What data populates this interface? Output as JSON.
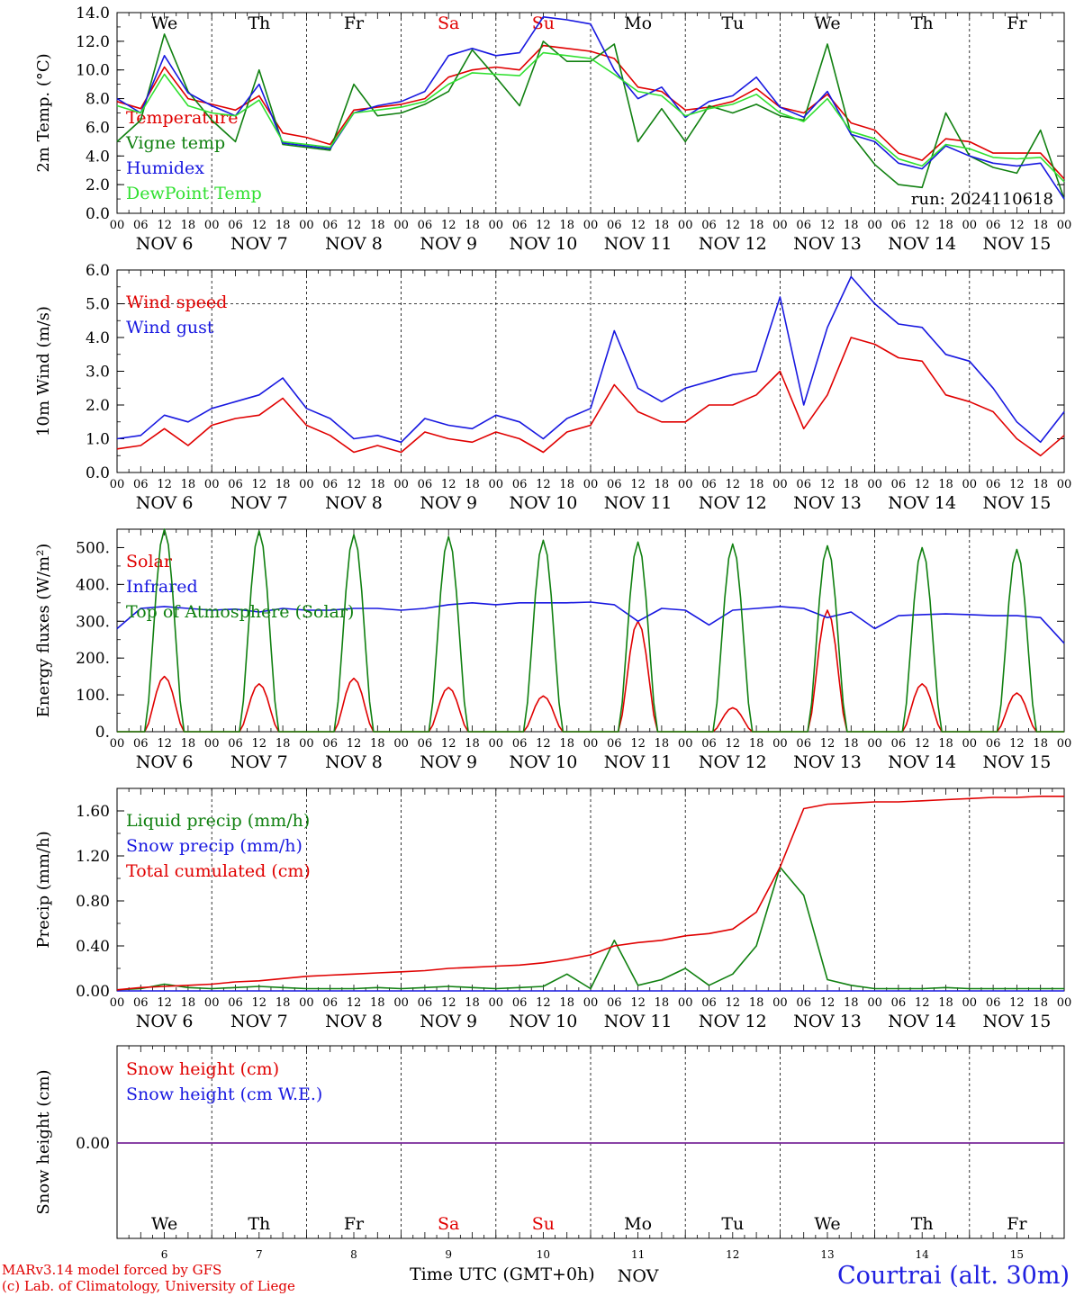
{
  "meta": {
    "title": "Courtrai (alt. 30m)",
    "credits": [
      "MARv3.14 model forced by GFS",
      "(c) Lab. of Climatology, University of Liege"
    ],
    "xaxis_title": "Time UTC (GMT+0h)",
    "xaxis_month": "NOV",
    "run_label": "run: 2024110618"
  },
  "days": {
    "weekday_labels": [
      "We",
      "Th",
      "Fr",
      "Sa",
      "Su",
      "Mo",
      "Tu",
      "We",
      "Th",
      "Fr"
    ],
    "weekend_flags": [
      false,
      false,
      false,
      true,
      true,
      false,
      false,
      false,
      false,
      false
    ],
    "date_labels": [
      "NOV  6",
      "NOV  7",
      "NOV  8",
      "NOV  9",
      "NOV 10",
      "NOV 11",
      "NOV 12",
      "NOV 13",
      "NOV 14",
      "NOV 15"
    ],
    "day_numbers": [
      "6",
      "7",
      "8",
      "9",
      "10",
      "11",
      "12",
      "13",
      "14",
      "15"
    ],
    "hour_tick_labels": [
      "00",
      "06",
      "12",
      "18"
    ],
    "final_hour_label": "00"
  },
  "colors": {
    "red": "#e00000",
    "green": "#108010",
    "blue": "#1818e0",
    "lightgreen": "#30e030",
    "purple": "#7a2a9a",
    "text": "#000000"
  },
  "chart_data": [
    {
      "type": "line",
      "id": "temperature",
      "ylabel": "2m Temp. (°C)",
      "ylim": [
        0,
        14
      ],
      "yticks": [
        "0.0",
        "2.0",
        "4.0",
        "6.0",
        "8.0",
        "10.0",
        "12.0",
        "14.0"
      ],
      "x_unit": "hours since NOV 6 00 UTC",
      "x": [
        0,
        6,
        12,
        18,
        24,
        30,
        36,
        42,
        48,
        54,
        60,
        66,
        72,
        78,
        84,
        90,
        96,
        102,
        108,
        114,
        120,
        126,
        132,
        138,
        144,
        150,
        156,
        162,
        168,
        174,
        180,
        186,
        192,
        198,
        204,
        210,
        216,
        222,
        228,
        234,
        240
      ],
      "series": [
        {
          "name": "Temperature",
          "color_key": "red",
          "values": [
            7.8,
            7.3,
            10.2,
            8.0,
            7.6,
            7.2,
            8.2,
            5.6,
            5.3,
            4.8,
            7.2,
            7.4,
            7.6,
            8.0,
            9.5,
            10.0,
            10.2,
            10.0,
            11.7,
            11.5,
            11.3,
            10.8,
            8.8,
            8.5,
            7.2,
            7.4,
            7.8,
            8.7,
            7.4,
            7.0,
            8.3,
            6.3,
            5.8,
            4.2,
            3.7,
            5.2,
            5.0,
            4.2,
            4.2,
            4.2,
            2.4
          ]
        },
        {
          "name": "Vigne temp",
          "color_key": "green",
          "values": [
            5.0,
            6.5,
            12.5,
            8.5,
            6.5,
            5.0,
            10.0,
            4.8,
            4.6,
            4.4,
            9.0,
            6.8,
            7.0,
            7.6,
            8.5,
            11.4,
            9.5,
            7.5,
            12.0,
            10.6,
            10.6,
            11.8,
            5.0,
            7.3,
            5.0,
            7.5,
            7.0,
            7.6,
            6.8,
            6.5,
            11.8,
            5.5,
            3.4,
            2.0,
            1.8,
            7.0,
            4.0,
            3.2,
            2.8,
            5.8,
            1.0
          ]
        },
        {
          "name": "Humidex",
          "color_key": "blue",
          "values": [
            8.0,
            7.0,
            11.0,
            8.4,
            7.5,
            6.8,
            9.0,
            4.9,
            4.7,
            4.5,
            7.0,
            7.5,
            7.8,
            8.5,
            11.0,
            11.5,
            11.0,
            11.2,
            13.7,
            13.5,
            13.2,
            10.0,
            8.0,
            8.8,
            6.7,
            7.8,
            8.2,
            9.5,
            7.4,
            6.7,
            8.5,
            5.5,
            5.0,
            3.5,
            3.1,
            4.7,
            4.0,
            3.5,
            3.3,
            3.5,
            1.0
          ]
        },
        {
          "name": "DewPoint Temp",
          "color_key": "lightgreen",
          "values": [
            7.5,
            7.0,
            9.7,
            7.5,
            7.0,
            6.8,
            7.9,
            5.0,
            4.8,
            4.6,
            7.0,
            7.2,
            7.4,
            7.8,
            9.0,
            9.8,
            9.7,
            9.6,
            11.2,
            11.0,
            10.8,
            9.7,
            8.5,
            8.2,
            6.8,
            7.3,
            7.6,
            8.3,
            7.0,
            6.4,
            8.0,
            5.7,
            5.2,
            3.8,
            3.3,
            4.8,
            4.5,
            3.9,
            3.8,
            3.9,
            2.2
          ]
        }
      ]
    },
    {
      "type": "line",
      "id": "wind",
      "ylabel": "10m Wind (m/s)",
      "ylim": [
        0,
        6
      ],
      "yticks": [
        "0.0",
        "1.0",
        "2.0",
        "3.0",
        "4.0",
        "5.0",
        "6.0"
      ],
      "ref_line": 5.0,
      "x": [
        0,
        6,
        12,
        18,
        24,
        30,
        36,
        42,
        48,
        54,
        60,
        66,
        72,
        78,
        84,
        90,
        96,
        102,
        108,
        114,
        120,
        126,
        132,
        138,
        144,
        150,
        156,
        162,
        168,
        174,
        180,
        186,
        192,
        198,
        204,
        210,
        216,
        222,
        228,
        234,
        240
      ],
      "series": [
        {
          "name": "Wind speed",
          "color_key": "red",
          "values": [
            0.7,
            0.8,
            1.3,
            0.8,
            1.4,
            1.6,
            1.7,
            2.2,
            1.4,
            1.1,
            0.6,
            0.8,
            0.6,
            1.2,
            1.0,
            0.9,
            1.2,
            1.0,
            0.6,
            1.2,
            1.4,
            2.6,
            1.8,
            1.5,
            1.5,
            2.0,
            2.0,
            2.3,
            3.0,
            1.3,
            2.3,
            4.0,
            3.8,
            3.4,
            3.3,
            2.3,
            2.1,
            1.8,
            1.0,
            0.5,
            1.1
          ]
        },
        {
          "name": "Wind gust",
          "color_key": "blue",
          "values": [
            1.0,
            1.1,
            1.7,
            1.5,
            1.9,
            2.1,
            2.3,
            2.8,
            1.9,
            1.6,
            1.0,
            1.1,
            0.9,
            1.6,
            1.4,
            1.3,
            1.7,
            1.5,
            1.0,
            1.6,
            1.9,
            4.2,
            2.5,
            2.1,
            2.5,
            2.7,
            2.9,
            3.0,
            5.2,
            2.0,
            4.3,
            5.8,
            5.0,
            4.4,
            4.3,
            3.5,
            3.3,
            2.5,
            1.5,
            0.9,
            1.8
          ]
        }
      ]
    },
    {
      "type": "line",
      "id": "energy",
      "ylabel": "Energy fluxes (W/m²)",
      "ylim": [
        0,
        550
      ],
      "yticks": [
        "0.",
        "100.",
        "200.",
        "300.",
        "400.",
        "500."
      ],
      "ytick_values": [
        0,
        100,
        200,
        300,
        400,
        500
      ],
      "x": [
        0,
        6,
        12,
        18,
        24,
        30,
        36,
        42,
        48,
        54,
        60,
        66,
        72,
        78,
        84,
        90,
        96,
        102,
        108,
        114,
        120,
        126,
        132,
        138,
        144,
        150,
        156,
        162,
        168,
        174,
        180,
        186,
        192,
        198,
        204,
        210,
        216,
        222,
        228,
        234,
        240
      ],
      "series": [
        {
          "name": "Solar",
          "color_key": "red",
          "diurnal_peaks": [
            150,
            130,
            145,
            120,
            97,
            300,
            65,
            330,
            130,
            105
          ]
        },
        {
          "name": "Infrared",
          "color_key": "blue",
          "values": [
            280,
            335,
            340,
            335,
            330,
            333,
            325,
            335,
            330,
            330,
            335,
            335,
            330,
            335,
            345,
            350,
            345,
            350,
            350,
            350,
            352,
            345,
            300,
            335,
            330,
            290,
            330,
            335,
            340,
            335,
            310,
            325,
            280,
            315,
            318,
            320,
            318,
            315,
            315,
            310,
            240
          ]
        },
        {
          "name": "Top of Atmosphere (Solar)",
          "color_key": "green",
          "diurnal_peaks": [
            550,
            545,
            535,
            530,
            520,
            515,
            510,
            505,
            500,
            495
          ]
        }
      ]
    },
    {
      "type": "line",
      "id": "precip",
      "ylabel": "Precip (mm/h)",
      "ylim": [
        0,
        1.8
      ],
      "yticks": [
        "0.00",
        "0.40",
        "0.80",
        "1.20",
        "1.60"
      ],
      "ytick_values": [
        0,
        0.4,
        0.8,
        1.2,
        1.6
      ],
      "x": [
        0,
        6,
        12,
        18,
        24,
        30,
        36,
        42,
        48,
        54,
        60,
        66,
        72,
        78,
        84,
        90,
        96,
        102,
        108,
        114,
        120,
        126,
        132,
        138,
        144,
        150,
        156,
        162,
        168,
        174,
        180,
        186,
        192,
        198,
        204,
        210,
        216,
        222,
        228,
        234,
        240
      ],
      "series": [
        {
          "name": "Liquid precip (mm/h)",
          "color_key": "green",
          "values": [
            0.01,
            0.02,
            0.06,
            0.03,
            0.02,
            0.03,
            0.04,
            0.03,
            0.02,
            0.02,
            0.02,
            0.03,
            0.02,
            0.03,
            0.04,
            0.03,
            0.02,
            0.03,
            0.04,
            0.15,
            0.02,
            0.45,
            0.05,
            0.1,
            0.2,
            0.05,
            0.15,
            0.4,
            1.1,
            0.85,
            0.1,
            0.05,
            0.02,
            0.02,
            0.02,
            0.03,
            0.02,
            0.02,
            0.02,
            0.02,
            0.02
          ]
        },
        {
          "name": "Snow precip (mm/h)",
          "color_key": "blue",
          "values": [
            0,
            0,
            0,
            0,
            0,
            0,
            0,
            0,
            0,
            0,
            0,
            0,
            0,
            0,
            0,
            0,
            0,
            0,
            0,
            0,
            0,
            0,
            0,
            0,
            0,
            0,
            0,
            0,
            0,
            0,
            0,
            0,
            0,
            0,
            0,
            0,
            0,
            0,
            0,
            0,
            0
          ]
        },
        {
          "name": "Total cumulated (cm)",
          "color_key": "red",
          "values": [
            0.01,
            0.03,
            0.04,
            0.05,
            0.06,
            0.08,
            0.09,
            0.11,
            0.13,
            0.14,
            0.15,
            0.16,
            0.17,
            0.18,
            0.2,
            0.21,
            0.22,
            0.23,
            0.25,
            0.28,
            0.32,
            0.4,
            0.43,
            0.45,
            0.49,
            0.51,
            0.55,
            0.7,
            1.1,
            1.62,
            1.66,
            1.67,
            1.68,
            1.68,
            1.69,
            1.7,
            1.71,
            1.72,
            1.72,
            1.73,
            1.73
          ]
        }
      ]
    },
    {
      "type": "line",
      "id": "snow",
      "ylabel": "Snow height (cm)",
      "yticks": [
        "0.00"
      ],
      "series": [
        {
          "name": "Snow height (cm)",
          "color_key": "red",
          "values": [
            0,
            0
          ]
        },
        {
          "name": "Snow height (cm W.E.)",
          "color_key": "blue",
          "values": [
            0,
            0
          ]
        }
      ]
    }
  ]
}
